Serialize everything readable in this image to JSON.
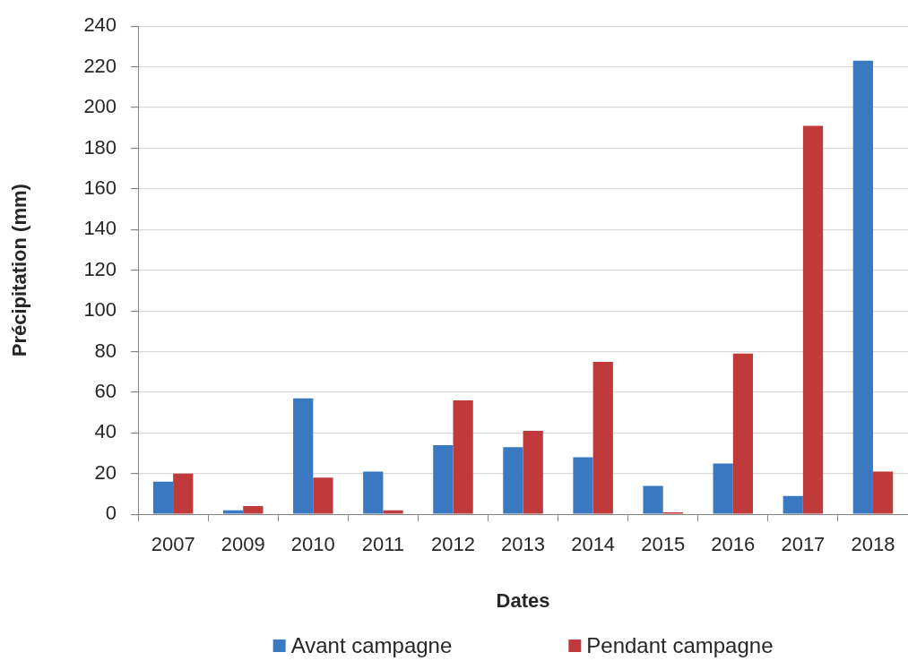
{
  "chart_data": {
    "type": "bar",
    "xlabel": "Dates",
    "ylabel": "Précipitation (mm)",
    "categories": [
      "2007",
      "2009",
      "2010",
      "2011",
      "2012",
      "2013",
      "2014",
      "2015",
      "2016",
      "2017",
      "2018"
    ],
    "series": [
      {
        "name": "Avant campagne",
        "color": "#3b78c2",
        "values": [
          16,
          2,
          57,
          21,
          34,
          33,
          28,
          14,
          25,
          9,
          223
        ]
      },
      {
        "name": "Pendant campagne",
        "color": "#c0393b",
        "values": [
          20,
          4,
          18,
          2,
          56,
          41,
          75,
          1,
          79,
          191,
          21
        ]
      }
    ],
    "ylim": [
      0,
      240
    ],
    "yticks": [
      0,
      20,
      40,
      60,
      80,
      100,
      120,
      140,
      160,
      180,
      200,
      220,
      240
    ],
    "grid": "y",
    "legend": "bottom"
  }
}
